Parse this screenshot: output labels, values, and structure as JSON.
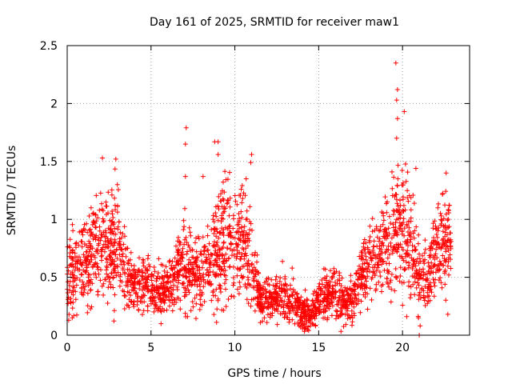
{
  "chart_data": {
    "type": "scatter",
    "title": "Day 161 of 2025, SRMTID for receiver maw1",
    "xlabel": "GPS time / hours",
    "ylabel": "SRMTID / TECUs",
    "xlim": [
      0,
      24
    ],
    "ylim": [
      0,
      2.5
    ],
    "x_ticks": [
      0,
      5,
      10,
      15,
      20
    ],
    "x_tick_labels": [
      "0",
      "5",
      "10",
      "15",
      "20"
    ],
    "y_ticks": [
      0,
      0.5,
      1,
      1.5,
      2,
      2.5
    ],
    "y_tick_labels": [
      "0",
      "0.5",
      "1",
      "1.5",
      "2",
      "2.5"
    ],
    "grid": true,
    "marker": "+",
    "color": "#ff0000",
    "envelope": {
      "description": "approximate typical level and spread of the dense point cloud vs GPS time (hours)",
      "x": [
        0,
        0.5,
        1,
        1.5,
        2,
        2.5,
        3,
        3.5,
        4,
        4.5,
        5,
        5.5,
        6,
        6.5,
        7,
        7.5,
        8,
        8.5,
        9,
        9.5,
        10,
        10.5,
        11,
        11.5,
        12,
        12.5,
        13,
        13.5,
        14,
        14.5,
        15,
        15.5,
        16,
        16.5,
        17,
        17.5,
        18,
        18.5,
        19,
        19.5,
        20,
        20.5,
        21,
        21.5,
        22,
        22.5,
        22.9
      ],
      "center": [
        0.5,
        0.62,
        0.6,
        0.7,
        0.8,
        0.7,
        0.85,
        0.5,
        0.42,
        0.45,
        0.4,
        0.38,
        0.4,
        0.48,
        0.6,
        0.5,
        0.55,
        0.6,
        0.75,
        0.8,
        0.75,
        0.9,
        0.55,
        0.33,
        0.3,
        0.3,
        0.3,
        0.28,
        0.2,
        0.18,
        0.3,
        0.35,
        0.4,
        0.25,
        0.3,
        0.55,
        0.6,
        0.7,
        0.8,
        0.95,
        0.9,
        0.7,
        0.5,
        0.45,
        0.75,
        0.8,
        0.8
      ],
      "spread": [
        0.18,
        0.25,
        0.2,
        0.22,
        0.25,
        0.25,
        0.28,
        0.15,
        0.12,
        0.13,
        0.12,
        0.12,
        0.12,
        0.15,
        0.22,
        0.17,
        0.17,
        0.2,
        0.25,
        0.3,
        0.25,
        0.3,
        0.18,
        0.1,
        0.1,
        0.1,
        0.12,
        0.1,
        0.08,
        0.08,
        0.1,
        0.12,
        0.15,
        0.1,
        0.1,
        0.15,
        0.17,
        0.2,
        0.22,
        0.3,
        0.3,
        0.25,
        0.2,
        0.17,
        0.2,
        0.22,
        0.2
      ]
    },
    "outliers": [
      {
        "x": 19.6,
        "y": 2.35
      },
      {
        "x": 19.7,
        "y": 2.12
      },
      {
        "x": 19.65,
        "y": 2.03
      },
      {
        "x": 19.7,
        "y": 1.87
      },
      {
        "x": 20.1,
        "y": 1.93
      },
      {
        "x": 19.65,
        "y": 1.7
      },
      {
        "x": 7.1,
        "y": 1.79
      },
      {
        "x": 7.05,
        "y": 1.65
      },
      {
        "x": 8.8,
        "y": 1.67
      },
      {
        "x": 9.0,
        "y": 1.67
      },
      {
        "x": 2.9,
        "y": 1.52
      },
      {
        "x": 2.1,
        "y": 1.53
      },
      {
        "x": 11.0,
        "y": 1.56
      },
      {
        "x": 10.95,
        "y": 1.49
      },
      {
        "x": 9.0,
        "y": 1.56
      },
      {
        "x": 7.05,
        "y": 1.37
      },
      {
        "x": 8.1,
        "y": 1.37
      },
      {
        "x": 20.8,
        "y": 1.44
      },
      {
        "x": 22.6,
        "y": 1.4
      },
      {
        "x": 21.0,
        "y": 0.0
      },
      {
        "x": 21.05,
        "y": 0.08
      },
      {
        "x": 20.95,
        "y": 0.15
      },
      {
        "x": 0.3,
        "y": 0.15
      },
      {
        "x": 22.7,
        "y": 0.18
      },
      {
        "x": 14.4,
        "y": 0.04
      },
      {
        "x": 14.5,
        "y": 0.08
      }
    ]
  }
}
